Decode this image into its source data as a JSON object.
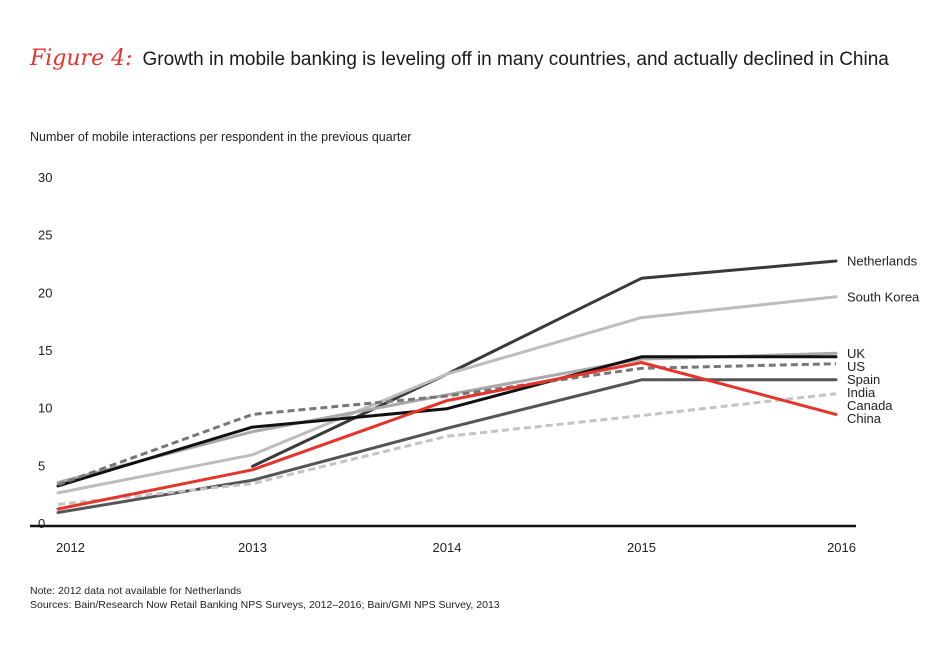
{
  "figure": {
    "label": "Figure 4:",
    "title": "Growth in mobile banking is leveling off in many countries, and actually declined in China"
  },
  "notes": {
    "note": "Note: 2012 data not available for Netherlands",
    "sources": "Sources: Bain/Research Now Retail Banking NPS Surveys, 2012–2016; Bain/GMI NPS Survey, 2013"
  },
  "chart_data": {
    "type": "line",
    "title": "Growth in mobile banking is leveling off in many countries, and actually declined in China",
    "ylabel": "Number of mobile interactions per respondent in the previous quarter",
    "xlabel": "",
    "x": [
      "2012",
      "2013",
      "2014",
      "2015",
      "2016"
    ],
    "ylim": [
      0,
      30
    ],
    "yticks": [
      0,
      5,
      10,
      15,
      20,
      25,
      30
    ],
    "grid": false,
    "series": [
      {
        "name": "Netherlands",
        "values": [
          null,
          5.0,
          13.0,
          21.3,
          22.8
        ],
        "color": "#3a3a3a",
        "dash": false
      },
      {
        "name": "South Korea",
        "values": [
          2.7,
          6.0,
          13.0,
          17.9,
          19.7
        ],
        "color": "#bdbdbd",
        "dash": false
      },
      {
        "name": "UK",
        "values": [
          3.6,
          8.0,
          11.2,
          14.3,
          14.8
        ],
        "color": "#a9a9a9",
        "dash": false
      },
      {
        "name": "US",
        "values": [
          3.3,
          8.4,
          10.0,
          14.5,
          14.5
        ],
        "color": "#111111",
        "dash": false
      },
      {
        "name": "Spain",
        "values": [
          3.4,
          9.5,
          11.1,
          13.5,
          13.9
        ],
        "color": "#777777",
        "dash": true
      },
      {
        "name": "India",
        "values": [
          1.0,
          3.8,
          8.3,
          12.5,
          12.5
        ],
        "color": "#555555",
        "dash": false
      },
      {
        "name": "Canada",
        "values": [
          1.7,
          3.5,
          7.6,
          9.4,
          11.3
        ],
        "color": "#c4c4c4",
        "dash": true
      },
      {
        "name": "China",
        "values": [
          1.3,
          4.7,
          10.7,
          14.0,
          9.5
        ],
        "color": "#e5342b",
        "dash": false
      }
    ]
  }
}
